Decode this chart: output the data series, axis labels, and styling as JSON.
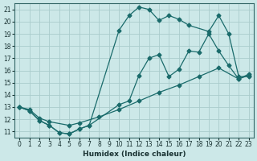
{
  "xlabel": "Humidex (Indice chaleur)",
  "background_color": "#cce8e8",
  "grid_color": "#aacccc",
  "line_color": "#1a6b6b",
  "xlim": [
    -0.5,
    23.5
  ],
  "ylim": [
    10.5,
    21.5
  ],
  "xticks": [
    0,
    1,
    2,
    3,
    4,
    5,
    6,
    7,
    8,
    9,
    10,
    11,
    12,
    13,
    14,
    15,
    16,
    17,
    18,
    19,
    20,
    21,
    22,
    23
  ],
  "yticks": [
    11,
    12,
    13,
    14,
    15,
    16,
    17,
    18,
    19,
    20,
    21
  ],
  "curve1_x": [
    0,
    1,
    2,
    3,
    4,
    5,
    6,
    7,
    10,
    11,
    12,
    13,
    14,
    15,
    16,
    17,
    19,
    20,
    21,
    22,
    23
  ],
  "curve1_y": [
    13.0,
    12.7,
    11.9,
    11.5,
    10.9,
    10.8,
    11.2,
    11.5,
    19.3,
    20.5,
    21.2,
    21.0,
    20.1,
    20.5,
    20.2,
    19.7,
    19.2,
    20.5,
    19.0,
    15.5,
    15.5
  ],
  "curve2_x": [
    0,
    1,
    2,
    3,
    4,
    5,
    6,
    7,
    10,
    11,
    12,
    13,
    14,
    15,
    16,
    17,
    18,
    19,
    20,
    21,
    22,
    23
  ],
  "curve2_y": [
    13.0,
    12.7,
    11.9,
    11.5,
    10.9,
    10.8,
    11.2,
    11.5,
    13.2,
    13.5,
    15.6,
    17.0,
    17.3,
    15.5,
    16.1,
    17.6,
    17.5,
    19.0,
    17.6,
    16.4,
    15.3,
    15.7
  ],
  "curve3_x": [
    0,
    1,
    2,
    3,
    5,
    6,
    8,
    10,
    12,
    14,
    16,
    18,
    20,
    22,
    23
  ],
  "curve3_y": [
    13.0,
    12.8,
    12.1,
    11.8,
    11.5,
    11.7,
    12.2,
    12.8,
    13.5,
    14.2,
    14.8,
    15.5,
    16.2,
    15.3,
    15.6
  ]
}
